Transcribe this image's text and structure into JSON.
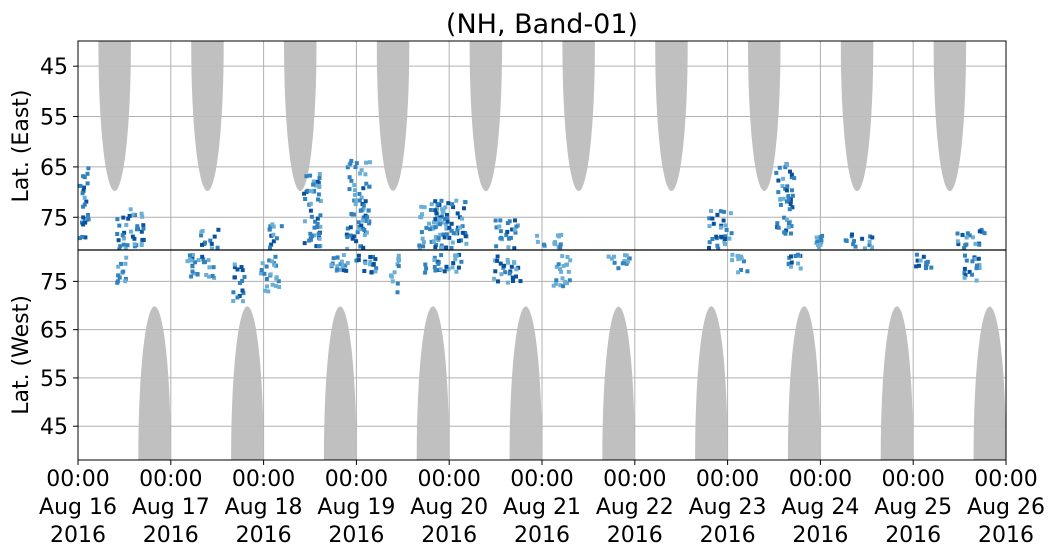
{
  "chart_data": {
    "type": "heatmap",
    "title": "(NH, Band-01)",
    "ylabel_top": "Lat. (East)",
    "ylabel_bottom": "Lat. (West)",
    "y_ticks_top": [
      "45",
      "55",
      "65",
      "75"
    ],
    "y_ticks_bottom": [
      "75",
      "65",
      "55",
      "45"
    ],
    "y_tick_values_top": [
      45,
      55,
      65,
      75
    ],
    "y_tick_values_bottom": [
      75,
      65,
      55,
      45
    ],
    "ylim_top": [
      40,
      81.5
    ],
    "ylim_bottom": [
      81.5,
      38
    ],
    "x_ticks": [
      {
        "time": "00:00",
        "date": "Aug 16",
        "year": "2016"
      },
      {
        "time": "00:00",
        "date": "Aug 17",
        "year": "2016"
      },
      {
        "time": "00:00",
        "date": "Aug 18",
        "year": "2016"
      },
      {
        "time": "00:00",
        "date": "Aug 19",
        "year": "2016"
      },
      {
        "time": "00:00",
        "date": "Aug 20",
        "year": "2016"
      },
      {
        "time": "00:00",
        "date": "Aug 21",
        "year": "2016"
      },
      {
        "time": "00:00",
        "date": "Aug 22",
        "year": "2016"
      },
      {
        "time": "00:00",
        "date": "Aug 23",
        "year": "2016"
      },
      {
        "time": "00:00",
        "date": "Aug 24",
        "year": "2016"
      },
      {
        "time": "00:00",
        "date": "Aug 25",
        "year": "2016"
      },
      {
        "time": "00:00",
        "date": "Aug 26",
        "year": "2016"
      }
    ],
    "xlim": [
      "2016-08-16 00:00",
      "2016-08-26 00:00"
    ],
    "grid": true,
    "colors": {
      "night_mask": "#bdbdbd",
      "echo_light": "#6baed6",
      "echo_mid": "#3182bd",
      "echo_dark": "#08519c",
      "divider": "#000000",
      "grid": "#b0b0b0"
    },
    "night_regions": {
      "top": [
        {
          "day_start": 0.22,
          "day_end": 0.57,
          "min_lat": 69
        },
        {
          "day_start": 1.22,
          "day_end": 1.57,
          "min_lat": 69
        },
        {
          "day_start": 2.22,
          "day_end": 2.57,
          "min_lat": 69
        },
        {
          "day_start": 3.22,
          "day_end": 3.57,
          "min_lat": 69
        },
        {
          "day_start": 4.22,
          "day_end": 4.57,
          "min_lat": 69
        },
        {
          "day_start": 5.22,
          "day_end": 5.57,
          "min_lat": 69
        },
        {
          "day_start": 6.22,
          "day_end": 6.57,
          "min_lat": 69
        },
        {
          "day_start": 7.22,
          "day_end": 7.57,
          "min_lat": 69
        },
        {
          "day_start": 8.22,
          "day_end": 8.57,
          "min_lat": 69
        },
        {
          "day_start": 9.22,
          "day_end": 9.57,
          "min_lat": 69
        }
      ],
      "bottom": [
        {
          "day_start": 0.65,
          "day_end": 1.0,
          "min_lat": 69
        },
        {
          "day_start": 1.65,
          "day_end": 2.0,
          "min_lat": 69
        },
        {
          "day_start": 2.65,
          "day_end": 3.0,
          "min_lat": 69
        },
        {
          "day_start": 3.65,
          "day_end": 4.0,
          "min_lat": 69
        },
        {
          "day_start": 4.65,
          "day_end": 5.0,
          "min_lat": 69
        },
        {
          "day_start": 5.65,
          "day_end": 6.0,
          "min_lat": 69
        },
        {
          "day_start": 6.65,
          "day_end": 7.0,
          "min_lat": 69
        },
        {
          "day_start": 7.65,
          "day_end": 8.0,
          "min_lat": 69
        },
        {
          "day_start": 8.65,
          "day_end": 9.0,
          "min_lat": 69
        },
        {
          "day_start": 9.65,
          "day_end": 10.0,
          "min_lat": 69
        }
      ]
    },
    "echo_clusters": {
      "top": [
        {
          "day": 0.05,
          "lat_low": 64,
          "lat_high": 80,
          "width": 0.1,
          "density": "mid"
        },
        {
          "day": 0.55,
          "lat_low": 73,
          "lat_high": 81,
          "width": 0.3,
          "density": "dark"
        },
        {
          "day": 1.4,
          "lat_low": 77,
          "lat_high": 81,
          "width": 0.2,
          "density": "mid"
        },
        {
          "day": 2.1,
          "lat_low": 76,
          "lat_high": 81,
          "width": 0.15,
          "density": "mid"
        },
        {
          "day": 2.5,
          "lat_low": 66,
          "lat_high": 81,
          "width": 0.2,
          "density": "mid"
        },
        {
          "day": 3.0,
          "lat_low": 63,
          "lat_high": 81,
          "width": 0.25,
          "density": "mid"
        },
        {
          "day": 3.8,
          "lat_low": 72,
          "lat_high": 81,
          "width": 0.3,
          "density": "light"
        },
        {
          "day": 4.0,
          "lat_low": 71,
          "lat_high": 81,
          "width": 0.35,
          "density": "dark"
        },
        {
          "day": 4.6,
          "lat_low": 75,
          "lat_high": 81,
          "width": 0.25,
          "density": "mid"
        },
        {
          "day": 5.05,
          "lat_low": 78,
          "lat_high": 81,
          "width": 0.3,
          "density": "light"
        },
        {
          "day": 6.9,
          "lat_low": 73,
          "lat_high": 81,
          "width": 0.25,
          "density": "mid"
        },
        {
          "day": 7.6,
          "lat_low": 64,
          "lat_high": 78,
          "width": 0.2,
          "density": "mid"
        },
        {
          "day": 7.95,
          "lat_low": 78,
          "lat_high": 81,
          "width": 0.1,
          "density": "light"
        },
        {
          "day": 8.4,
          "lat_low": 78,
          "lat_high": 81,
          "width": 0.3,
          "density": "mid"
        },
        {
          "day": 9.6,
          "lat_low": 77,
          "lat_high": 81,
          "width": 0.3,
          "density": "mid"
        }
      ],
      "bottom": [
        {
          "day": 0.45,
          "lat_low": 75,
          "lat_high": 81,
          "width": 0.1,
          "density": "light"
        },
        {
          "day": 1.3,
          "lat_low": 75,
          "lat_high": 81,
          "width": 0.3,
          "density": "mid"
        },
        {
          "day": 1.7,
          "lat_low": 71,
          "lat_high": 79,
          "width": 0.15,
          "density": "dark"
        },
        {
          "day": 2.05,
          "lat_low": 73,
          "lat_high": 81,
          "width": 0.2,
          "density": "light"
        },
        {
          "day": 2.75,
          "lat_low": 77,
          "lat_high": 81,
          "width": 0.15,
          "density": "light"
        },
        {
          "day": 3.0,
          "lat_low": 77,
          "lat_high": 81,
          "width": 0.4,
          "density": "dark"
        },
        {
          "day": 3.4,
          "lat_low": 73,
          "lat_high": 81,
          "width": 0.1,
          "density": "light"
        },
        {
          "day": 3.9,
          "lat_low": 77,
          "lat_high": 81,
          "width": 0.45,
          "density": "mid"
        },
        {
          "day": 4.6,
          "lat_low": 75,
          "lat_high": 81,
          "width": 0.3,
          "density": "dark"
        },
        {
          "day": 5.2,
          "lat_low": 74,
          "lat_high": 81,
          "width": 0.2,
          "density": "light"
        },
        {
          "day": 5.8,
          "lat_low": 78,
          "lat_high": 81,
          "width": 0.3,
          "density": "light"
        },
        {
          "day": 7.1,
          "lat_low": 77,
          "lat_high": 81,
          "width": 0.2,
          "density": "light"
        },
        {
          "day": 7.7,
          "lat_low": 78,
          "lat_high": 81,
          "width": 0.15,
          "density": "mid"
        },
        {
          "day": 9.1,
          "lat_low": 78,
          "lat_high": 81,
          "width": 0.2,
          "density": "mid"
        },
        {
          "day": 9.6,
          "lat_low": 75,
          "lat_high": 81,
          "width": 0.2,
          "density": "dark"
        }
      ]
    }
  }
}
